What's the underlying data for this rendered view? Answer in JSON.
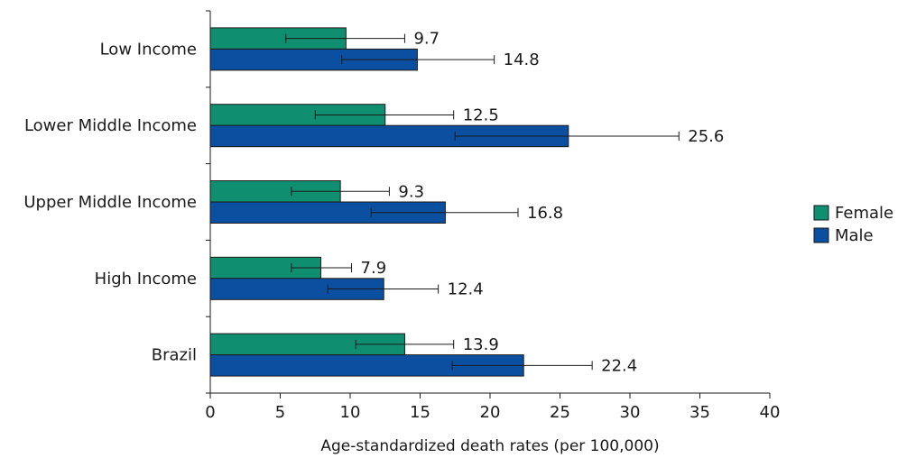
{
  "chart_data": {
    "type": "bar",
    "orientation": "horizontal",
    "categories": [
      "Low Income",
      "Lower Middle Income",
      "Upper Middle Income",
      "High Income",
      "Brazil"
    ],
    "series": [
      {
        "name": "Female",
        "color": "#0f8f6f",
        "values": [
          9.7,
          12.5,
          9.3,
          7.9,
          13.9
        ],
        "value_labels": [
          "9.7",
          "12.5",
          "9.3",
          "7.9",
          "13.9"
        ],
        "error_low": [
          5.4,
          7.5,
          5.8,
          5.8,
          10.4
        ],
        "error_high": [
          13.9,
          17.4,
          12.8,
          10.1,
          17.4
        ]
      },
      {
        "name": "Male",
        "color": "#0b4fa0",
        "values": [
          14.8,
          25.6,
          16.8,
          12.4,
          22.4
        ],
        "value_labels": [
          "14.8",
          "25.6",
          "16.8",
          "12.4",
          "22.4"
        ],
        "error_low": [
          9.4,
          17.5,
          11.5,
          8.4,
          17.3
        ],
        "error_high": [
          20.3,
          33.5,
          22.0,
          16.3,
          27.3
        ]
      }
    ],
    "xlabel": "Age-standardized death rates (per 100,000)",
    "ylabel": "",
    "xlim": [
      0,
      40
    ],
    "xticks": [
      "0",
      "5",
      "10",
      "15",
      "20",
      "25",
      "30",
      "35",
      "40"
    ],
    "grid": false,
    "legend_position": "right"
  }
}
